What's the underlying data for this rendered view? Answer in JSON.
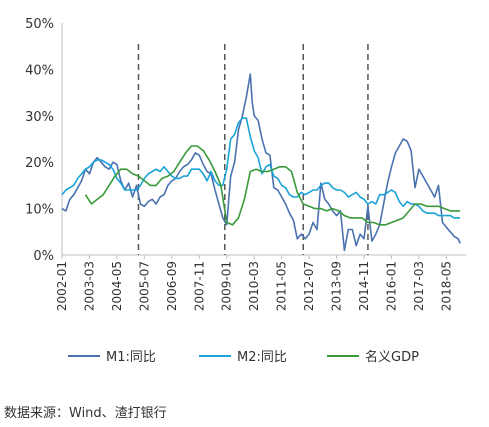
{
  "chart_data": {
    "type": "line",
    "title": "",
    "xlabel": "",
    "ylabel": "",
    "ylim": [
      0,
      50
    ],
    "y_ticks": [
      "0%",
      "10%",
      "20%",
      "30%",
      "40%",
      "50%"
    ],
    "y_tick_values": [
      0,
      10,
      20,
      30,
      40,
      50
    ],
    "x_tick_labels": [
      "2002-01",
      "2003-03",
      "2004-05",
      "2005-07",
      "2006-09",
      "2007-11",
      "2009-01",
      "2010-03",
      "2011-05",
      "2012-07",
      "2013-09",
      "2014-11",
      "2016-01",
      "2017-03",
      "2018-05"
    ],
    "x_tick_dates": [
      "2002-01",
      "2003-03",
      "2004-05",
      "2005-07",
      "2006-09",
      "2007-11",
      "2009-01",
      "2010-03",
      "2011-05",
      "2012-07",
      "2013-09",
      "2014-11",
      "2016-01",
      "2017-03",
      "2018-05"
    ],
    "xlim": [
      "2002-01",
      "2019-03"
    ],
    "vlines": [
      "2005-04",
      "2008-12",
      "2012-04",
      "2015-01"
    ],
    "grid": false,
    "legend_position": "bottom",
    "series": [
      {
        "name": "M1:同比",
        "color": "#4a72b0",
        "points": [
          [
            "2002-01",
            10
          ],
          [
            "2002-03",
            9.5
          ],
          [
            "2002-05",
            12
          ],
          [
            "2002-07",
            13
          ],
          [
            "2002-09",
            14.5
          ],
          [
            "2002-11",
            16
          ],
          [
            "2003-01",
            18.5
          ],
          [
            "2003-03",
            17.5
          ],
          [
            "2003-05",
            20
          ],
          [
            "2003-07",
            21
          ],
          [
            "2003-09",
            20
          ],
          [
            "2003-11",
            19
          ],
          [
            "2004-01",
            18.5
          ],
          [
            "2004-03",
            20
          ],
          [
            "2004-05",
            19.5
          ],
          [
            "2004-07",
            16
          ],
          [
            "2004-09",
            14
          ],
          [
            "2004-11",
            15.5
          ],
          [
            "2005-01",
            12.5
          ],
          [
            "2005-03",
            15
          ],
          [
            "2005-05",
            11
          ],
          [
            "2005-07",
            10.5
          ],
          [
            "2005-09",
            11.5
          ],
          [
            "2005-11",
            12
          ],
          [
            "2006-01",
            11
          ],
          [
            "2006-03",
            12.5
          ],
          [
            "2006-05",
            13
          ],
          [
            "2006-07",
            15
          ],
          [
            "2006-09",
            16
          ],
          [
            "2006-11",
            16.5
          ],
          [
            "2007-01",
            18
          ],
          [
            "2007-03",
            19
          ],
          [
            "2007-05",
            19.5
          ],
          [
            "2007-07",
            20.5
          ],
          [
            "2007-09",
            22
          ],
          [
            "2007-11",
            21.5
          ],
          [
            "2008-01",
            19.5
          ],
          [
            "2008-03",
            18
          ],
          [
            "2008-05",
            17.5
          ],
          [
            "2008-07",
            14
          ],
          [
            "2008-09",
            11
          ],
          [
            "2008-11",
            8
          ],
          [
            "2009-01",
            6.5
          ],
          [
            "2009-03",
            17
          ],
          [
            "2009-05",
            20
          ],
          [
            "2009-07",
            27
          ],
          [
            "2009-09",
            30
          ],
          [
            "2009-11",
            34
          ],
          [
            "2010-01",
            39
          ],
          [
            "2010-02",
            33
          ],
          [
            "2010-03",
            30
          ],
          [
            "2010-05",
            29
          ],
          [
            "2010-07",
            25
          ],
          [
            "2010-09",
            22
          ],
          [
            "2010-11",
            21.5
          ],
          [
            "2011-01",
            14.5
          ],
          [
            "2011-03",
            14
          ],
          [
            "2011-05",
            12.5
          ],
          [
            "2011-07",
            11
          ],
          [
            "2011-09",
            9
          ],
          [
            "2011-11",
            7.5
          ],
          [
            "2012-01",
            3.5
          ],
          [
            "2012-03",
            4.5
          ],
          [
            "2012-05",
            3.5
          ],
          [
            "2012-07",
            4.5
          ],
          [
            "2012-09",
            7
          ],
          [
            "2012-11",
            5.5
          ],
          [
            "2013-01",
            15.5
          ],
          [
            "2013-03",
            12
          ],
          [
            "2013-05",
            11
          ],
          [
            "2013-07",
            9.5
          ],
          [
            "2013-09",
            8.5
          ],
          [
            "2013-11",
            9.5
          ],
          [
            "2014-01",
            1
          ],
          [
            "2014-03",
            5.5
          ],
          [
            "2014-05",
            5.5
          ],
          [
            "2014-07",
            2
          ],
          [
            "2014-09",
            4.5
          ],
          [
            "2014-11",
            3.5
          ],
          [
            "2015-01",
            10.5
          ],
          [
            "2015-03",
            3
          ],
          [
            "2015-05",
            4.5
          ],
          [
            "2015-07",
            6.5
          ],
          [
            "2015-09",
            11
          ],
          [
            "2015-11",
            15.5
          ],
          [
            "2016-01",
            19
          ],
          [
            "2016-03",
            22
          ],
          [
            "2016-05",
            23.5
          ],
          [
            "2016-07",
            25
          ],
          [
            "2016-09",
            24.5
          ],
          [
            "2016-11",
            22.5
          ],
          [
            "2017-01",
            14.5
          ],
          [
            "2017-03",
            18.5
          ],
          [
            "2017-05",
            17
          ],
          [
            "2017-07",
            15.5
          ],
          [
            "2017-09",
            14
          ],
          [
            "2017-11",
            12.5
          ],
          [
            "2018-01",
            15
          ],
          [
            "2018-03",
            7
          ],
          [
            "2018-05",
            6
          ],
          [
            "2018-07",
            5
          ],
          [
            "2018-09",
            4
          ],
          [
            "2018-11",
            3.5
          ],
          [
            "2018-12",
            2.5
          ]
        ]
      },
      {
        "name": "M2:同比",
        "color": "#1aa3d9",
        "points": [
          [
            "2002-01",
            13
          ],
          [
            "2002-03",
            14
          ],
          [
            "2002-05",
            14.5
          ],
          [
            "2002-07",
            15
          ],
          [
            "2002-09",
            16.5
          ],
          [
            "2002-11",
            17.5
          ],
          [
            "2003-01",
            18.5
          ],
          [
            "2003-03",
            19
          ],
          [
            "2003-05",
            20
          ],
          [
            "2003-07",
            20.5
          ],
          [
            "2003-09",
            20.5
          ],
          [
            "2003-11",
            20
          ],
          [
            "2004-01",
            19.5
          ],
          [
            "2004-03",
            18.5
          ],
          [
            "2004-05",
            16.5
          ],
          [
            "2004-07",
            15.5
          ],
          [
            "2004-09",
            14
          ],
          [
            "2004-11",
            14
          ],
          [
            "2005-01",
            14
          ],
          [
            "2005-03",
            14
          ],
          [
            "2005-05",
            15
          ],
          [
            "2005-07",
            16.5
          ],
          [
            "2005-09",
            17.5
          ],
          [
            "2005-11",
            18
          ],
          [
            "2006-01",
            18.5
          ],
          [
            "2006-03",
            18
          ],
          [
            "2006-05",
            19
          ],
          [
            "2006-07",
            18
          ],
          [
            "2006-09",
            17
          ],
          [
            "2006-11",
            16.5
          ],
          [
            "2007-01",
            16.5
          ],
          [
            "2007-03",
            17
          ],
          [
            "2007-05",
            17
          ],
          [
            "2007-07",
            18.5
          ],
          [
            "2007-09",
            18.5
          ],
          [
            "2007-11",
            18.5
          ],
          [
            "2008-01",
            17.5
          ],
          [
            "2008-03",
            16
          ],
          [
            "2008-05",
            18
          ],
          [
            "2008-07",
            16
          ],
          [
            "2008-09",
            15
          ],
          [
            "2008-11",
            15
          ],
          [
            "2009-01",
            18.5
          ],
          [
            "2009-03",
            25
          ],
          [
            "2009-05",
            26
          ],
          [
            "2009-07",
            28.5
          ],
          [
            "2009-09",
            29.5
          ],
          [
            "2009-11",
            29.5
          ],
          [
            "2010-01",
            25.5
          ],
          [
            "2010-03",
            22.5
          ],
          [
            "2010-05",
            21
          ],
          [
            "2010-07",
            17.5
          ],
          [
            "2010-09",
            19
          ],
          [
            "2010-11",
            19.5
          ],
          [
            "2011-01",
            17
          ],
          [
            "2011-03",
            16.5
          ],
          [
            "2011-05",
            15
          ],
          [
            "2011-07",
            14.5
          ],
          [
            "2011-09",
            13
          ],
          [
            "2011-11",
            12.5
          ],
          [
            "2012-01",
            12.5
          ],
          [
            "2012-03",
            13.5
          ],
          [
            "2012-05",
            13
          ],
          [
            "2012-07",
            13.5
          ],
          [
            "2012-09",
            14
          ],
          [
            "2012-11",
            14
          ],
          [
            "2013-01",
            15
          ],
          [
            "2013-03",
            15.5
          ],
          [
            "2013-05",
            15.5
          ],
          [
            "2013-07",
            14.5
          ],
          [
            "2013-09",
            14
          ],
          [
            "2013-11",
            14
          ],
          [
            "2014-01",
            13.5
          ],
          [
            "2014-03",
            12.5
          ],
          [
            "2014-05",
            13
          ],
          [
            "2014-07",
            13.5
          ],
          [
            "2014-09",
            12.5
          ],
          [
            "2014-11",
            12
          ],
          [
            "2015-01",
            11
          ],
          [
            "2015-03",
            11.5
          ],
          [
            "2015-05",
            11
          ],
          [
            "2015-07",
            13
          ],
          [
            "2015-09",
            13
          ],
          [
            "2015-11",
            13.5
          ],
          [
            "2016-01",
            14
          ],
          [
            "2016-03",
            13.5
          ],
          [
            "2016-05",
            11.5
          ],
          [
            "2016-07",
            10.5
          ],
          [
            "2016-09",
            11.5
          ],
          [
            "2016-11",
            11
          ],
          [
            "2017-01",
            11
          ],
          [
            "2017-03",
            10.5
          ],
          [
            "2017-05",
            9.5
          ],
          [
            "2017-07",
            9
          ],
          [
            "2017-09",
            9
          ],
          [
            "2017-11",
            9
          ],
          [
            "2018-01",
            8.5
          ],
          [
            "2018-03",
            8.5
          ],
          [
            "2018-05",
            8.5
          ],
          [
            "2018-07",
            8.5
          ],
          [
            "2018-09",
            8
          ],
          [
            "2018-11",
            8
          ],
          [
            "2018-12",
            8
          ]
        ]
      },
      {
        "name": "名义GDP",
        "color": "#3a9a3a",
        "points": [
          [
            "2003-01",
            13
          ],
          [
            "2003-04",
            11
          ],
          [
            "2003-07",
            12
          ],
          [
            "2003-10",
            13
          ],
          [
            "2004-01",
            15
          ],
          [
            "2004-04",
            17
          ],
          [
            "2004-07",
            18.5
          ],
          [
            "2004-10",
            18.5
          ],
          [
            "2005-01",
            17.5
          ],
          [
            "2005-04",
            17
          ],
          [
            "2005-07",
            16
          ],
          [
            "2005-10",
            15
          ],
          [
            "2006-01",
            15
          ],
          [
            "2006-04",
            16.5
          ],
          [
            "2006-07",
            17
          ],
          [
            "2006-10",
            18
          ],
          [
            "2007-01",
            20
          ],
          [
            "2007-04",
            22
          ],
          [
            "2007-07",
            23.5
          ],
          [
            "2007-10",
            23.5
          ],
          [
            "2008-01",
            22.5
          ],
          [
            "2008-04",
            20.5
          ],
          [
            "2008-07",
            18
          ],
          [
            "2008-10",
            15
          ],
          [
            "2009-01",
            7
          ],
          [
            "2009-04",
            6.5
          ],
          [
            "2009-07",
            8
          ],
          [
            "2009-10",
            12
          ],
          [
            "2010-01",
            18
          ],
          [
            "2010-04",
            18.5
          ],
          [
            "2010-07",
            18
          ],
          [
            "2010-10",
            18
          ],
          [
            "2011-01",
            18.5
          ],
          [
            "2011-04",
            19
          ],
          [
            "2011-07",
            19
          ],
          [
            "2011-10",
            18
          ],
          [
            "2012-01",
            13.5
          ],
          [
            "2012-04",
            11
          ],
          [
            "2012-07",
            10.5
          ],
          [
            "2012-10",
            10
          ],
          [
            "2013-01",
            10
          ],
          [
            "2013-04",
            9.5
          ],
          [
            "2013-07",
            10
          ],
          [
            "2013-10",
            9.5
          ],
          [
            "2014-01",
            8.5
          ],
          [
            "2014-04",
            8
          ],
          [
            "2014-07",
            8
          ],
          [
            "2014-10",
            8
          ],
          [
            "2015-01",
            7
          ],
          [
            "2015-04",
            7
          ],
          [
            "2015-07",
            6.5
          ],
          [
            "2015-10",
            6.5
          ],
          [
            "2016-01",
            7
          ],
          [
            "2016-04",
            7.5
          ],
          [
            "2016-07",
            8
          ],
          [
            "2016-10",
            9.5
          ],
          [
            "2017-01",
            11
          ],
          [
            "2017-04",
            11
          ],
          [
            "2017-07",
            10.5
          ],
          [
            "2017-10",
            10.5
          ],
          [
            "2018-01",
            10.5
          ],
          [
            "2018-04",
            10
          ],
          [
            "2018-07",
            9.5
          ],
          [
            "2018-10",
            9.5
          ],
          [
            "2018-12",
            9.5
          ]
        ]
      }
    ]
  },
  "source_text": "数据来源：Wind、渣打银行"
}
